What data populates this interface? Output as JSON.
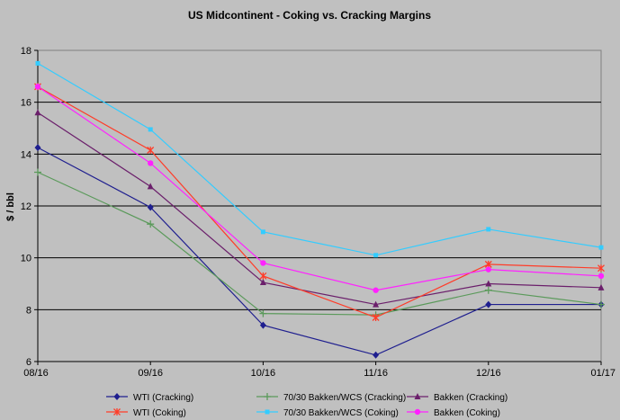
{
  "chart_data": {
    "type": "line",
    "title": "US Midcontinent - Coking vs. Cracking Margins",
    "xlabel": "",
    "ylabel": "$ / bbl",
    "categories": [
      "08/16",
      "09/16",
      "10/16",
      "11/16",
      "12/16",
      "01/17"
    ],
    "ylim": [
      6,
      18
    ],
    "yticks": [
      "6",
      "8",
      "10",
      "12",
      "14",
      "16",
      "18"
    ],
    "grid": "horizontal",
    "legend_position": "bottom",
    "series": [
      {
        "name": "WTI (Cracking)",
        "color": "#1f1f8f",
        "marker": "diamond",
        "values": [
          14.25,
          11.95,
          7.4,
          6.25,
          8.2,
          8.2
        ]
      },
      {
        "name": "70/30 Bakken/WCS (Cracking)",
        "color": "#5b9a5b",
        "marker": "plus",
        "values": [
          13.3,
          11.3,
          7.85,
          7.8,
          8.75,
          8.2
        ]
      },
      {
        "name": "Bakken (Cracking)",
        "color": "#6b1f6b",
        "marker": "triangle",
        "values": [
          15.6,
          12.75,
          9.05,
          8.2,
          9.0,
          8.85
        ]
      },
      {
        "name": "WTI (Coking)",
        "color": "#ff3c28",
        "marker": "star",
        "values": [
          16.6,
          14.15,
          9.3,
          7.7,
          9.75,
          9.6
        ]
      },
      {
        "name": "70/30 Bakken/WCS (Coking)",
        "color": "#33ccff",
        "marker": "square",
        "values": [
          17.5,
          14.95,
          11.0,
          10.1,
          11.1,
          10.4
        ]
      },
      {
        "name": "Bakken (Coking)",
        "color": "#ff22ff",
        "marker": "circle",
        "values": [
          16.6,
          13.65,
          9.8,
          8.75,
          9.55,
          9.3
        ]
      }
    ]
  }
}
